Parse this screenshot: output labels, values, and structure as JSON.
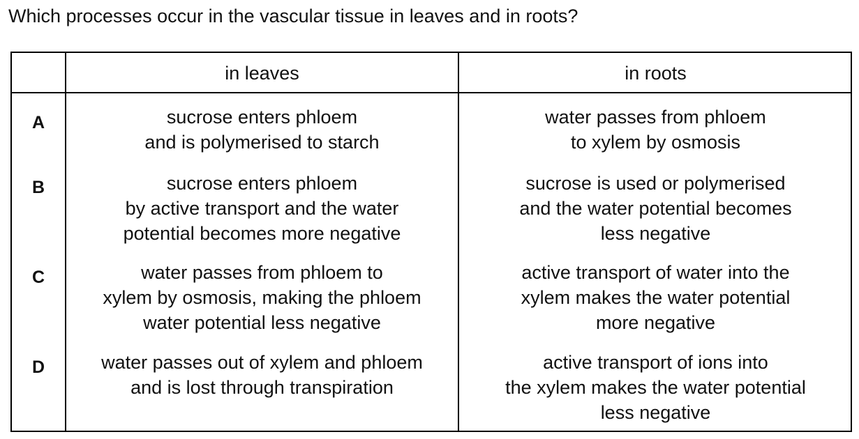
{
  "question": "Which processes occur in the vascular tissue in leaves and in roots?",
  "table": {
    "headers": [
      "",
      "in leaves",
      "in roots"
    ],
    "rows": [
      {
        "letter": "A",
        "leaves": [
          "sucrose enters phloem",
          "and is polymerised to starch"
        ],
        "roots": [
          "water passes from phloem",
          "to xylem by osmosis"
        ]
      },
      {
        "letter": "B",
        "leaves": [
          "sucrose enters phloem",
          "by active transport and the water",
          "potential becomes more negative"
        ],
        "roots": [
          "sucrose is used or polymerised",
          "and the water potential becomes",
          "less negative"
        ]
      },
      {
        "letter": "C",
        "leaves": [
          "water passes from phloem to",
          "xylem by osmosis, making the phloem",
          "water potential less negative"
        ],
        "roots": [
          "active transport of water into the",
          "xylem makes the water potential",
          "more negative"
        ]
      },
      {
        "letter": "D",
        "leaves": [
          "water passes out of xylem and phloem",
          "and is lost through transpiration"
        ],
        "roots": [
          "active transport of ions into",
          "the xylem makes the water potential",
          "less negative"
        ]
      }
    ]
  }
}
